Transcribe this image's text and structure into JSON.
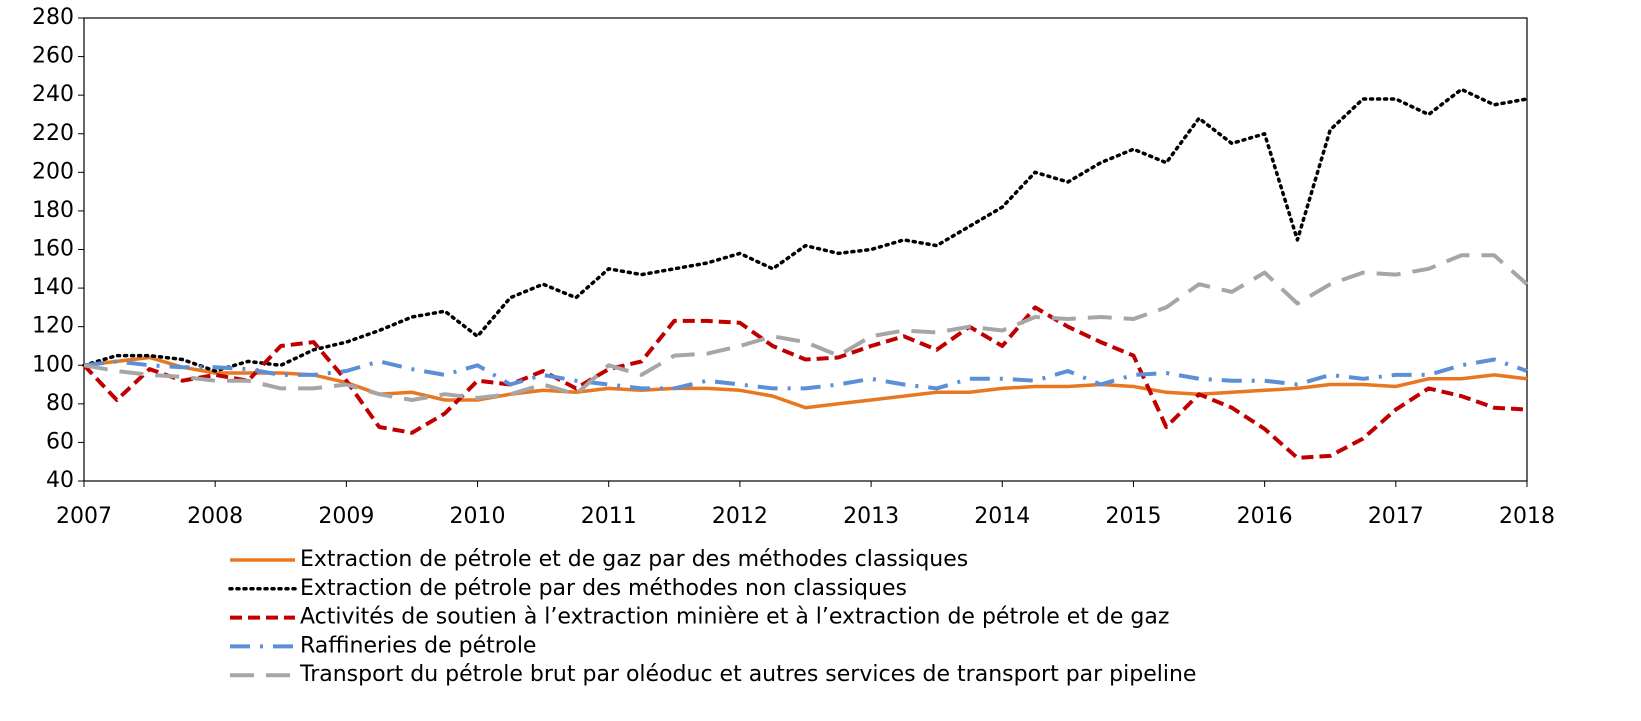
{
  "chart_data": {
    "type": "line",
    "x": [
      2007,
      2007.25,
      2007.5,
      2007.75,
      2008,
      2008.25,
      2008.5,
      2008.75,
      2009,
      2009.25,
      2009.5,
      2009.75,
      2010,
      2010.25,
      2010.5,
      2010.75,
      2011,
      2011.25,
      2011.5,
      2011.75,
      2012,
      2012.25,
      2012.5,
      2012.75,
      2013,
      2013.25,
      2013.5,
      2013.75,
      2014,
      2014.25,
      2014.5,
      2014.75,
      2015,
      2015.25,
      2015.5,
      2015.75,
      2016,
      2016.25,
      2016.5,
      2016.75,
      2017,
      2017.25,
      2017.5,
      2017.75,
      2018
    ],
    "series": [
      {
        "name": "Extraction de pétrole et de gaz par des méthodes classiques",
        "color": "#e87722",
        "dash": "solid",
        "values": [
          100,
          102,
          104,
          99,
          96,
          96,
          96,
          95,
          91,
          85,
          86,
          82,
          82,
          85,
          87,
          86,
          88,
          87,
          88,
          88,
          87,
          84,
          78,
          80,
          82,
          84,
          86,
          86,
          88,
          89,
          89,
          90,
          89,
          86,
          85,
          86,
          87,
          88,
          90,
          90,
          89,
          93,
          93,
          95,
          93
        ]
      },
      {
        "name": "Extraction de pétrole par des méthodes non classiques",
        "color": "#000000",
        "dash": "dotted",
        "values": [
          100,
          105,
          105,
          103,
          97,
          102,
          100,
          108,
          112,
          118,
          125,
          128,
          115,
          135,
          142,
          135,
          150,
          147,
          150,
          153,
          158,
          150,
          162,
          158,
          160,
          165,
          162,
          172,
          182,
          200,
          195,
          205,
          212,
          205,
          228,
          215,
          220,
          165,
          222,
          238,
          238,
          230,
          243,
          235,
          238
        ]
      },
      {
        "name": "Activités de soutien à l’extraction minière et à l’extraction de pétrole et de gaz",
        "color": "#c00000",
        "dash": "dashed",
        "values": [
          100,
          82,
          98,
          92,
          95,
          92,
          110,
          112,
          92,
          68,
          65,
          75,
          92,
          90,
          97,
          88,
          98,
          102,
          123,
          123,
          122,
          110,
          103,
          104,
          110,
          115,
          108,
          120,
          110,
          130,
          120,
          112,
          105,
          68,
          85,
          78,
          67,
          52,
          53,
          62,
          77,
          88,
          84,
          78,
          77
        ]
      },
      {
        "name": "Raffineries de pétrole",
        "color": "#5b8fd6",
        "dash": "dashdot",
        "values": [
          100,
          102,
          100,
          99,
          99,
          98,
          95,
          95,
          97,
          102,
          98,
          95,
          100,
          90,
          95,
          92,
          90,
          88,
          88,
          92,
          90,
          88,
          88,
          90,
          93,
          90,
          88,
          93,
          93,
          92,
          97,
          90,
          95,
          96,
          93,
          92,
          92,
          90,
          95,
          93,
          95,
          95,
          100,
          103,
          97
        ]
      },
      {
        "name": "Transport du pétrole brut par oléoduc et autres services de transport par pipeline",
        "color": "#a6a6a6",
        "dash": "longdash",
        "values": [
          100,
          97,
          95,
          94,
          92,
          92,
          88,
          88,
          90,
          85,
          82,
          85,
          83,
          85,
          90,
          85,
          100,
          95,
          105,
          106,
          110,
          115,
          112,
          105,
          115,
          118,
          117,
          120,
          118,
          125,
          124,
          125,
          124,
          130,
          142,
          138,
          148,
          132,
          142,
          148,
          147,
          150,
          157,
          157,
          142
        ]
      }
    ],
    "xlim": [
      2007,
      2018
    ],
    "xticks": [
      2007,
      2008,
      2009,
      2010,
      2011,
      2012,
      2013,
      2014,
      2015,
      2016,
      2017,
      2018
    ],
    "ylim": [
      40,
      280
    ],
    "yticks": [
      40,
      60,
      80,
      100,
      120,
      140,
      160,
      180,
      200,
      220,
      240,
      260,
      280
    ],
    "grid": false
  }
}
